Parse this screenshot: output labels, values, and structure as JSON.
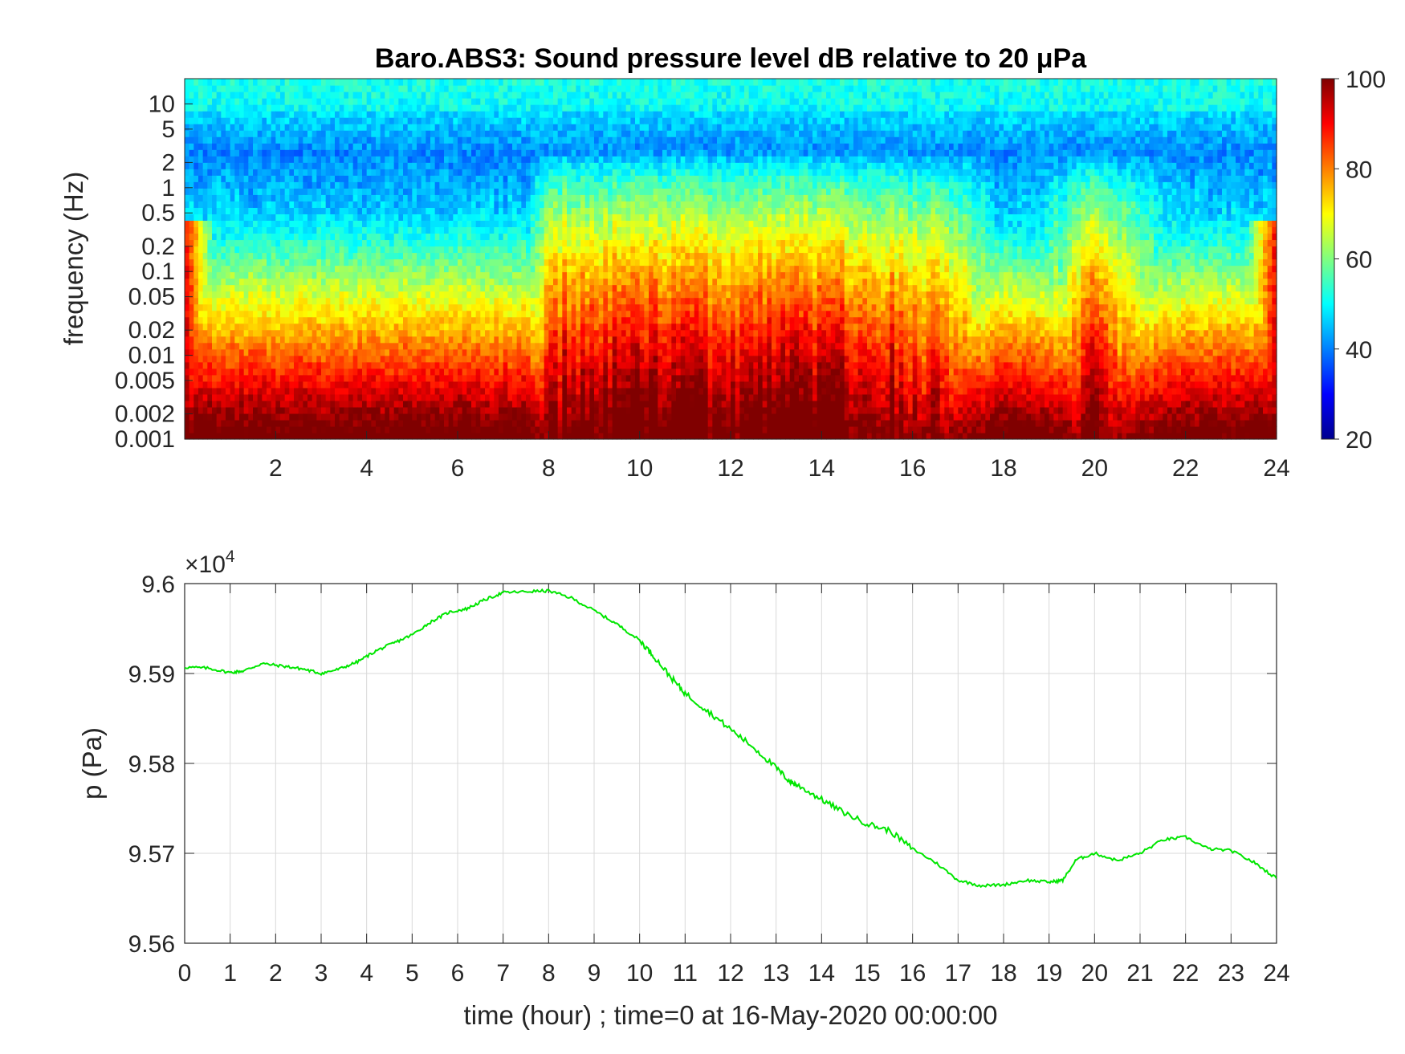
{
  "chart_data": [
    {
      "type": "heatmap",
      "title": "Baro.ABS3: Sound pressure level dB relative to 20 μPa",
      "ylabel": "frequency (Hz)",
      "xlabel": "",
      "x_ticks": [
        "2",
        "4",
        "6",
        "8",
        "10",
        "12",
        "14",
        "16",
        "18",
        "20",
        "22",
        "24"
      ],
      "xlim": [
        0,
        24
      ],
      "y_scale": "log",
      "ylim": [
        0.001,
        20
      ],
      "y_ticks": [
        "0.001",
        "0.002",
        "0.005",
        "0.01",
        "0.02",
        "0.05",
        "0.1",
        "0.2",
        "0.5",
        "1",
        "2",
        "5",
        "10"
      ],
      "colorbar": {
        "ticks": [
          "20",
          "40",
          "60",
          "80",
          "100"
        ],
        "clim": [
          20,
          100
        ],
        "colormap": "jet"
      },
      "approx_level_profile": {
        "hours": [
          0,
          1,
          2,
          4,
          6,
          7.5,
          8,
          9,
          10,
          12,
          13.3,
          14,
          15,
          17,
          18,
          19,
          20,
          21,
          22,
          24
        ],
        "activity": [
          0.05,
          0.1,
          0.08,
          0.1,
          0.05,
          0.15,
          0.85,
          0.92,
          0.95,
          0.9,
          1.0,
          0.92,
          0.9,
          0.7,
          0.1,
          0.3,
          0.95,
          0.5,
          0.2,
          0.12
        ]
      }
    },
    {
      "type": "line",
      "title": "",
      "xlabel": "time (hour) ; time=0 at 16-May-2020 00:00:00",
      "ylabel": "p (Pa)",
      "y_exponent": "×10",
      "y_exponent_power": "4",
      "xlim": [
        0,
        24
      ],
      "ylim": [
        95600,
        96000
      ],
      "x_ticks": [
        "0",
        "1",
        "2",
        "3",
        "4",
        "5",
        "6",
        "7",
        "8",
        "9",
        "10",
        "11",
        "12",
        "13",
        "14",
        "15",
        "16",
        "17",
        "18",
        "19",
        "20",
        "21",
        "22",
        "23",
        "24"
      ],
      "y_ticks": [
        "9.56",
        "9.57",
        "9.58",
        "9.59",
        "9.6"
      ],
      "grid": true,
      "series": [
        {
          "color": "#00e600",
          "x": [
            0,
            0.5,
            1,
            1.3,
            1.7,
            2.2,
            2.6,
            3,
            3.4,
            3.8,
            4.2,
            4.6,
            5,
            5.4,
            5.8,
            6.2,
            6.6,
            7,
            7.5,
            8,
            8.5,
            9,
            9.5,
            10,
            10.3,
            10.7,
            11,
            11.5,
            12,
            12.5,
            13,
            13.3,
            13.5,
            14,
            14.5,
            15,
            15.5,
            16,
            16.5,
            17,
            17.5,
            18,
            18.5,
            19,
            19.3,
            19.6,
            20,
            20.5,
            21,
            21.5,
            22,
            22.5,
            23,
            23.5,
            24
          ],
          "y": [
            95907,
            95906,
            95901,
            95903,
            95911,
            95908,
            95905,
            95900,
            95905,
            95913,
            95925,
            95934,
            95943,
            95957,
            95968,
            95972,
            95982,
            95990,
            95991,
            95992,
            95984,
            95970,
            95955,
            95937,
            95920,
            95895,
            95878,
            95858,
            95838,
            95818,
            95795,
            95780,
            95775,
            95760,
            95745,
            95733,
            95725,
            95705,
            95690,
            95670,
            95664,
            95665,
            95670,
            95668,
            95670,
            95693,
            95700,
            95692,
            95700,
            95715,
            95718,
            95705,
            95703,
            95690,
            95672
          ]
        }
      ]
    }
  ]
}
